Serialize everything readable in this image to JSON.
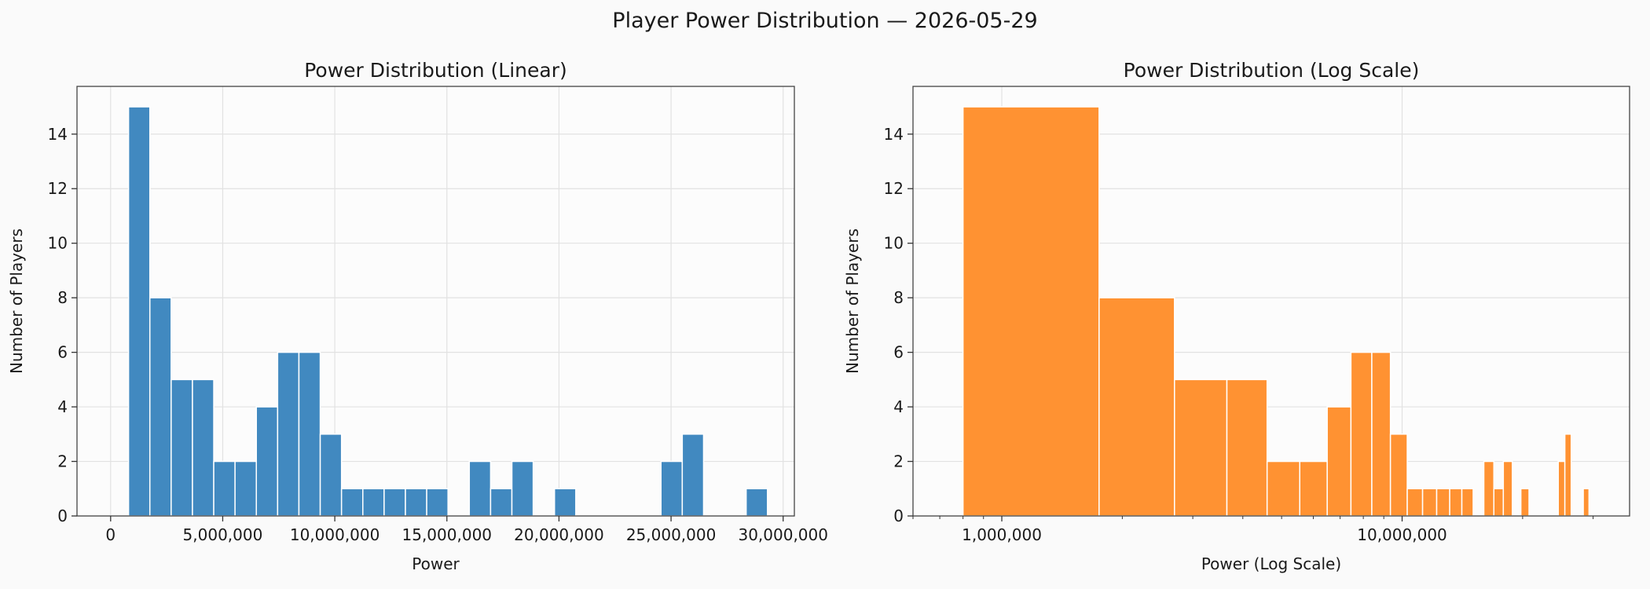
{
  "suptitle": "Player Power Distribution — 2026-05-29",
  "colors": {
    "background": "#fafafa",
    "panel": "#fcfcfc",
    "linear_bar": "#4189c0",
    "log_bar": "#ff9232",
    "grid": "#e2e2e2"
  },
  "chart_data": [
    {
      "type": "bar",
      "title": "Power Distribution (Linear)",
      "xlabel": "Power",
      "ylabel": "Number of Players",
      "xscale": "linear",
      "xlim": [
        -1500000,
        30500000
      ],
      "ylim": [
        0,
        15.75
      ],
      "xticks": [
        0,
        5000000,
        10000000,
        15000000,
        20000000,
        25000000,
        30000000
      ],
      "xtick_labels": [
        "0",
        "5,000,000",
        "10,000,000",
        "15,000,000",
        "20,000,000",
        "25,000,000",
        "30,000,000"
      ],
      "yticks": [
        0,
        2,
        4,
        6,
        8,
        10,
        12,
        14
      ],
      "ytick_labels": [
        "0",
        "2",
        "4",
        "6",
        "8",
        "10",
        "12",
        "14"
      ],
      "grid": true,
      "bin_edges": [
        800000,
        1750000,
        2700000,
        3650000,
        4600000,
        5550000,
        6500000,
        7450000,
        8400000,
        9350000,
        10300000,
        11250000,
        12200000,
        13150000,
        14100000,
        15050000,
        16000000,
        16950000,
        17900000,
        18850000,
        19800000,
        20750000,
        21700000,
        22650000,
        23600000,
        24550000,
        25500000,
        26450000,
        27400000,
        28350000,
        29300000
      ],
      "values": [
        15,
        8,
        5,
        5,
        2,
        2,
        4,
        6,
        6,
        3,
        1,
        1,
        1,
        1,
        1,
        0,
        2,
        1,
        2,
        0,
        1,
        0,
        0,
        0,
        0,
        2,
        3,
        0,
        0,
        1
      ]
    },
    {
      "type": "bar",
      "title": "Power Distribution (Log Scale)",
      "xlabel": "Power (Log Scale)",
      "ylabel": "Number of Players",
      "xscale": "log",
      "xlim": [
        600000,
        37000000
      ],
      "ylim": [
        0,
        15.75
      ],
      "xticks": [
        1000000,
        10000000
      ],
      "xtick_labels": [
        "1,000,000",
        "10,000,000"
      ],
      "yticks": [
        0,
        2,
        4,
        6,
        8,
        10,
        12,
        14
      ],
      "ytick_labels": [
        "0",
        "2",
        "4",
        "6",
        "8",
        "10",
        "12",
        "14"
      ],
      "grid": true,
      "bin_edges": [
        800000,
        1750000,
        2700000,
        3650000,
        4600000,
        5550000,
        6500000,
        7450000,
        8400000,
        9350000,
        10300000,
        11250000,
        12200000,
        13150000,
        14100000,
        15050000,
        16000000,
        16950000,
        17900000,
        18850000,
        19800000,
        20750000,
        21700000,
        22650000,
        23600000,
        24550000,
        25500000,
        26450000,
        27400000,
        28350000,
        29300000
      ],
      "values": [
        15,
        8,
        5,
        5,
        2,
        2,
        4,
        6,
        6,
        3,
        1,
        1,
        1,
        1,
        1,
        0,
        2,
        1,
        2,
        0,
        1,
        0,
        0,
        0,
        0,
        2,
        3,
        0,
        0,
        1
      ]
    }
  ]
}
